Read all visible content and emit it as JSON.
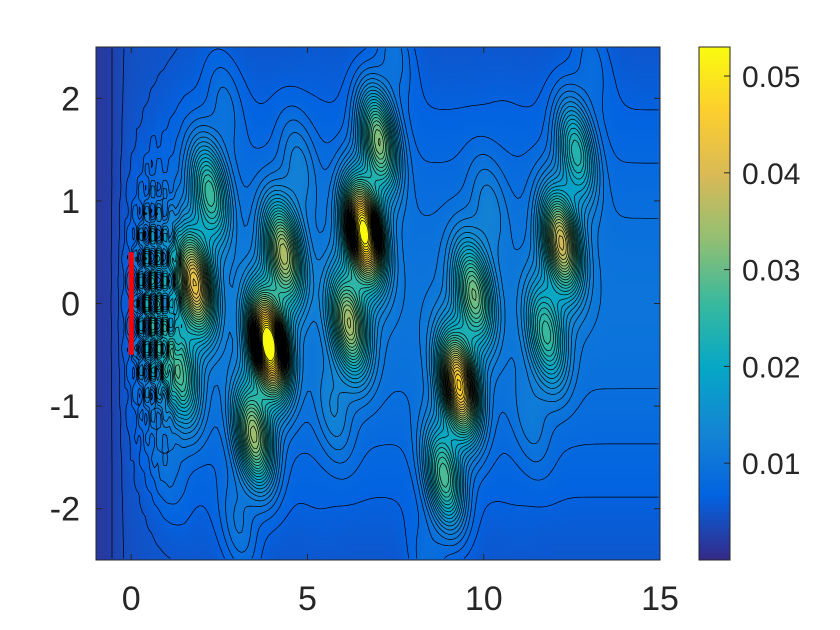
{
  "chart_data": {
    "type": "heatmap",
    "title": "",
    "xlabel": "",
    "ylabel": "",
    "xlim": [
      -1,
      15
    ],
    "ylim": [
      -2.5,
      2.5
    ],
    "x_ticks": [
      0,
      5,
      10,
      15
    ],
    "x_tick_labels": [
      "0",
      "5",
      "10",
      "15"
    ],
    "y_ticks": [
      2,
      1,
      0,
      -1,
      -2
    ],
    "y_tick_labels": [
      "2",
      "1",
      "0",
      "-1",
      "-2"
    ],
    "colormap": "parula",
    "color_range": [
      0,
      0.053
    ],
    "colorbar_ticks": [
      0.05,
      0.04,
      0.03,
      0.02,
      0.01
    ],
    "colorbar_tick_labels": [
      "0.05",
      "0.04",
      "0.03",
      "0.02",
      "0.01"
    ],
    "contour_lines": true,
    "contour_color": "#000000",
    "grid": false,
    "wave_bands": [
      {
        "x": 1.8,
        "y": 0.2,
        "peak": 0.033
      },
      {
        "x": 3.9,
        "y": -0.4,
        "peak": 0.047
      },
      {
        "x": 6.6,
        "y": 0.7,
        "peak": 0.045
      },
      {
        "x": 9.3,
        "y": -0.8,
        "peak": 0.038
      },
      {
        "x": 12.2,
        "y": 0.6,
        "peak": 0.03
      }
    ],
    "source_segment": {
      "x": 0,
      "y_from": -0.5,
      "y_to": 0.5,
      "color": "#ff0000"
    }
  }
}
